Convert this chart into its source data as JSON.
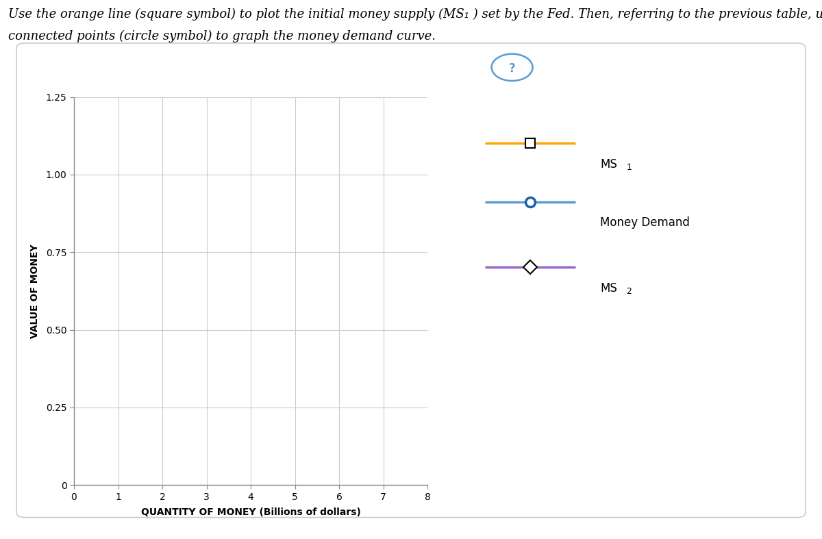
{
  "title_line1": "Use the orange line (square symbol) to plot the initial money supply (MS₁ ) set by the Fed. Then, referring to the previous table, use the blue",
  "title_line2": "connected points (circle symbol) to graph the money demand curve.",
  "xlabel": "QUANTITY OF MONEY (Billions of dollars)",
  "ylabel": "VALUE OF MONEY",
  "xlim": [
    0,
    8
  ],
  "ylim": [
    0,
    1.25
  ],
  "xticks": [
    0,
    1,
    2,
    3,
    4,
    5,
    6,
    7,
    8
  ],
  "yticks": [
    0,
    0.25,
    0.5,
    0.75,
    1.0,
    1.25
  ],
  "grid_color": "#cccccc",
  "plot_bg_color": "#ffffff",
  "outer_bg": "#ffffff",
  "box_bg": "#ffffff",
  "box_edge_color": "#cccccc",
  "ms1_color": "#FFA500",
  "ms1_marker": "s",
  "ms1_label": "MS",
  "ms1_sub": "1",
  "md_color": "#5b9bd5",
  "md_marker": "o",
  "md_label": "Money Demand",
  "ms2_color": "#9966cc",
  "ms2_marker": "D",
  "ms2_label": "MS",
  "ms2_sub": "2",
  "linewidth": 2.5,
  "markersize": 10,
  "title_fontsize": 13,
  "axis_label_fontsize": 10,
  "tick_fontsize": 10,
  "legend_fontsize": 12,
  "qmark_color": "#5b9bd5"
}
